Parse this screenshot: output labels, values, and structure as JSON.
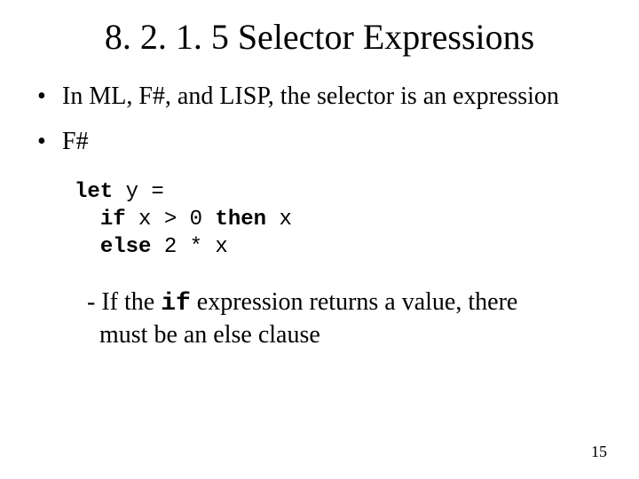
{
  "title": "8. 2. 1. 5 Selector Expressions",
  "bullets": {
    "b1": "In ML, F#, and LISP, the selector is an expression",
    "b2": "F#"
  },
  "code": {
    "kw_let": "let",
    "line1_rest": " y =",
    "indent2": "  ",
    "kw_if": "if",
    "line2_mid": " x > 0 ",
    "kw_then": "then",
    "line2_rest": " x",
    "kw_else": "else",
    "line3_rest": " 2 * x"
  },
  "note": {
    "prefix": "- If the ",
    "kw_if": "if",
    "rest": " expression returns a value, there must be an else clause"
  },
  "pagenum": "15",
  "dot": "•"
}
